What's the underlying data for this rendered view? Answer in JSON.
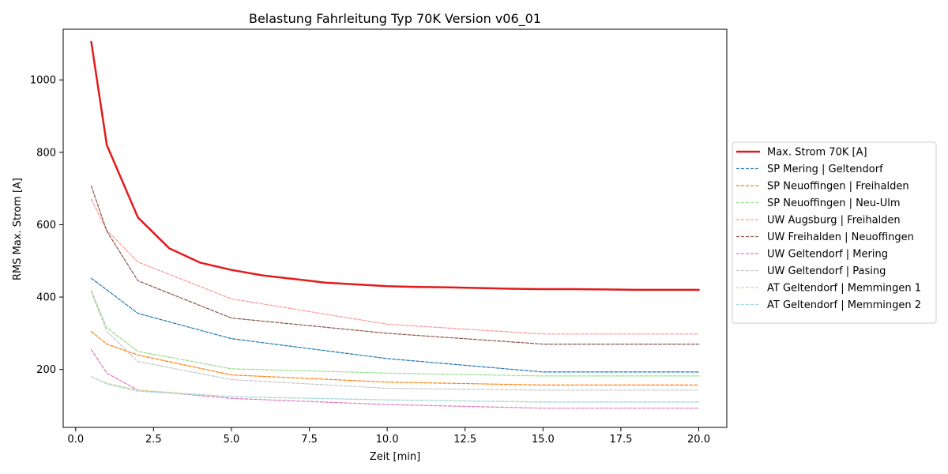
{
  "chart_data": {
    "type": "line",
    "title": "Belastung Fahrleitung Typ 70K Version v06_01",
    "xlabel": "Zeit [min]",
    "ylabel": "RMS Max. Strom [A]",
    "xlim": [
      -0.4,
      20.9
    ],
    "ylim": [
      40,
      1140
    ],
    "xticks": [
      0.0,
      2.5,
      5.0,
      7.5,
      10.0,
      12.5,
      15.0,
      17.5,
      20.0
    ],
    "xtick_labels": [
      "0.0",
      "2.5",
      "5.0",
      "7.5",
      "10.0",
      "12.5",
      "15.0",
      "17.5",
      "20.0"
    ],
    "yticks": [
      200,
      400,
      600,
      800,
      1000
    ],
    "ytick_labels": [
      "200",
      "400",
      "600",
      "800",
      "1000"
    ],
    "grid": false,
    "legend_position": "right-outside",
    "series": [
      {
        "name": "Max. Strom 70K [A]",
        "color": "#e31a1c",
        "style": "solid",
        "width": 2.5,
        "x": [
          0.5,
          1,
          2,
          3,
          4,
          5,
          6,
          7,
          8,
          9,
          10,
          11,
          12,
          13,
          14,
          15,
          16,
          17,
          18,
          19,
          20
        ],
        "y": [
          1105,
          820,
          620,
          535,
          495,
          475,
          460,
          450,
          440,
          435,
          430,
          428,
          427,
          425,
          423,
          422,
          422,
          421,
          420,
          420,
          420
        ]
      },
      {
        "name": "SP Mering | Geltendorf",
        "color": "#1f77b4",
        "style": "dashed",
        "width": 1.2,
        "x": [
          0.5,
          1,
          2,
          5,
          10,
          15,
          20
        ],
        "y": [
          452,
          420,
          355,
          285,
          230,
          193,
          193
        ]
      },
      {
        "name": "SP Neuoffingen | Freihalden",
        "color": "#ff7f0e",
        "style": "dashed",
        "width": 1.2,
        "x": [
          0.5,
          1,
          2,
          5,
          10,
          15,
          20
        ],
        "y": [
          305,
          270,
          240,
          185,
          165,
          157,
          157
        ]
      },
      {
        "name": "SP Neuoffingen | Neu-Ulm",
        "color": "#98df8a",
        "style": "dashed",
        "width": 1.2,
        "x": [
          0.5,
          1,
          2,
          5,
          10,
          15,
          20
        ],
        "y": [
          418,
          315,
          250,
          202,
          190,
          182,
          182
        ]
      },
      {
        "name": "UW Augsburg | Freihalden",
        "color": "#ff9896",
        "style": "dashed",
        "width": 1.2,
        "x": [
          0.5,
          1,
          2,
          5,
          10,
          15,
          20
        ],
        "y": [
          670,
          585,
          497,
          395,
          325,
          298,
          298
        ]
      },
      {
        "name": "UW Freihalden | Neuoffingen",
        "color": "#8c564b",
        "style": "dashed",
        "width": 1.2,
        "x": [
          0.5,
          1,
          2,
          5,
          10,
          15,
          20
        ],
        "y": [
          707,
          582,
          445,
          342,
          300,
          270,
          270
        ]
      },
      {
        "name": "UW Geltendorf | Mering",
        "color": "#e377c2",
        "style": "dashed",
        "width": 1.2,
        "x": [
          0.5,
          1,
          2,
          5,
          10,
          15,
          20
        ],
        "y": [
          255,
          190,
          143,
          120,
          103,
          93,
          93
        ]
      },
      {
        "name": "UW Geltendorf | Pasing",
        "color": "#c7c7c7",
        "style": "dashed",
        "width": 1.2,
        "x": [
          0.5,
          1,
          2,
          5,
          10,
          15,
          20
        ],
        "y": [
          415,
          305,
          222,
          172,
          148,
          143,
          143
        ]
      },
      {
        "name": "AT Geltendorf | Memmingen 1",
        "color": "#dbdb8d",
        "style": "dashed",
        "width": 1.2,
        "x": [
          0.5,
          1,
          2,
          5,
          10,
          15,
          20
        ],
        "y": [
          180,
          162,
          143,
          125,
          116,
          110,
          110
        ]
      },
      {
        "name": "AT Geltendorf | Memmingen 2",
        "color": "#9edae5",
        "style": "dashed",
        "width": 1.2,
        "x": [
          0.5,
          1,
          2,
          5,
          10,
          15,
          20
        ],
        "y": [
          180,
          160,
          140,
          125,
          116,
          110,
          110
        ]
      }
    ]
  }
}
